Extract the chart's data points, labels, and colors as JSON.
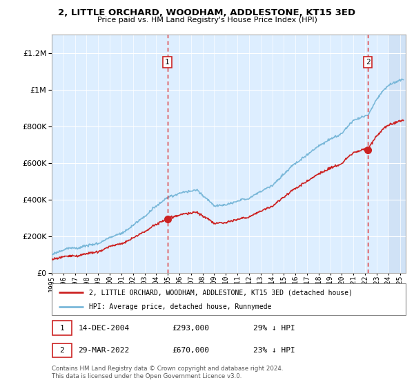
{
  "title": "2, LITTLE ORCHARD, WOODHAM, ADDLESTONE, KT15 3ED",
  "subtitle": "Price paid vs. HM Land Registry's House Price Index (HPI)",
  "xlim_start": 1995.0,
  "xlim_end": 2025.5,
  "ylim_bottom": 0,
  "ylim_top": 1300000,
  "yticks": [
    0,
    200000,
    400000,
    600000,
    800000,
    1000000,
    1200000
  ],
  "ytick_labels": [
    "£0",
    "£200K",
    "£400K",
    "£600K",
    "£800K",
    "£1M",
    "£1.2M"
  ],
  "sale1_x": 2004.96,
  "sale1_y": 293000,
  "sale2_x": 2022.24,
  "sale2_y": 670000,
  "vline1_x": 2004.96,
  "vline2_x": 2022.24,
  "legend_line1": "2, LITTLE ORCHARD, WOODHAM, ADDLESTONE, KT15 3ED (detached house)",
  "legend_line2": "HPI: Average price, detached house, Runnymede",
  "note1_date": "14-DEC-2004",
  "note1_price": "£293,000",
  "note1_hpi": "29% ↓ HPI",
  "note2_date": "29-MAR-2022",
  "note2_price": "£670,000",
  "note2_hpi": "23% ↓ HPI",
  "footer": "Contains HM Land Registry data © Crown copyright and database right 2024.\nThis data is licensed under the Open Government Licence v3.0.",
  "hpi_color": "#7ab8d9",
  "price_color": "#cc2222",
  "background_plot": "#ddeeff",
  "fig_width": 6.0,
  "fig_height": 5.6,
  "dpi": 100
}
